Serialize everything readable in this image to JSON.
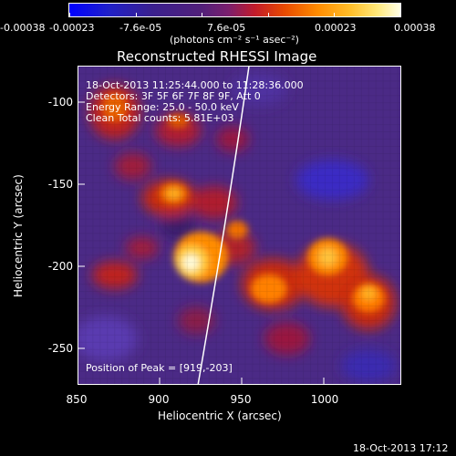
{
  "colorbar": {
    "tick_labels": [
      "-0.00038",
      "-0.00023",
      "-7.6e-05",
      "7.6e-05",
      "0.00023",
      "0.00038"
    ],
    "unit_label": "(photons cm⁻² s⁻¹ asec⁻²)"
  },
  "plot": {
    "title": "Reconstructed RHESSI Image",
    "info_lines": [
      "18-Oct-2013 11:25:44.000 to 11:28:36.000",
      "Detectors: 3F 5F 6F 7F 8F 9F, Att 0",
      "Energy Range: 25.0 - 50.0 keV",
      "Clean    Total counts: 5.81E+03"
    ],
    "peak_label": "Position of Peak = [919,-203]",
    "xlabel": "Heliocentric X (arcsec)",
    "ylabel": "Heliocentric Y (arcsec)",
    "xticks": [
      "850",
      "900",
      "950",
      "1000"
    ],
    "yticks": [
      "-100",
      "-150",
      "-200",
      "-250"
    ]
  },
  "timestamp": "18-Oct-2013 17:12",
  "image_content": "RHESSI hard X-ray image: mottled purple background with bright yellow-white flare source near [919,-203], orange/red blobs scattered, white solar limb arc crossing from lower-left to upper-right"
}
